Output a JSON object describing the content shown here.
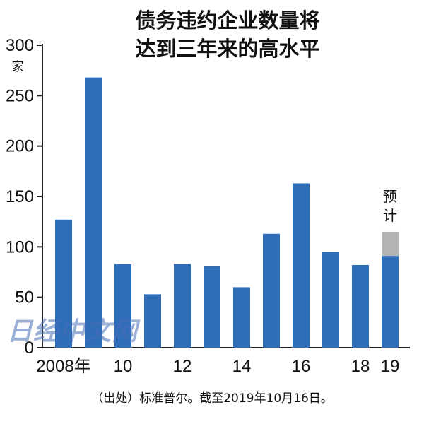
{
  "title": [
    "债务违约企业数量将",
    "达到三年来的高水平"
  ],
  "source": "（出处）标准普尔。截至2019年10月16日。",
  "watermark": "日经中文网",
  "colors": {
    "bar": "#2f6db8",
    "forecast": "#b3b3b3",
    "axis": "#222222"
  },
  "chart_data": {
    "type": "bar",
    "title": "债务违约企业数量将达到三年来的高水平",
    "unit": "家",
    "categories": [
      "2008",
      "2009",
      "2010",
      "2011",
      "2012",
      "2013",
      "2014",
      "2015",
      "2016",
      "2017",
      "2018",
      "2019"
    ],
    "x_tick_labels": [
      "2008年",
      "",
      "10",
      "",
      "12",
      "",
      "14",
      "",
      "16",
      "",
      "18",
      "19"
    ],
    "values": [
      127,
      268,
      83,
      53,
      83,
      81,
      60,
      113,
      163,
      95,
      82,
      91
    ],
    "forecast": {
      "category": "2019",
      "total": 115,
      "label": "预计"
    },
    "ylim": [
      0,
      300
    ],
    "yticks": [
      0,
      50,
      100,
      150,
      200,
      250,
      300
    ],
    "grid": false
  }
}
